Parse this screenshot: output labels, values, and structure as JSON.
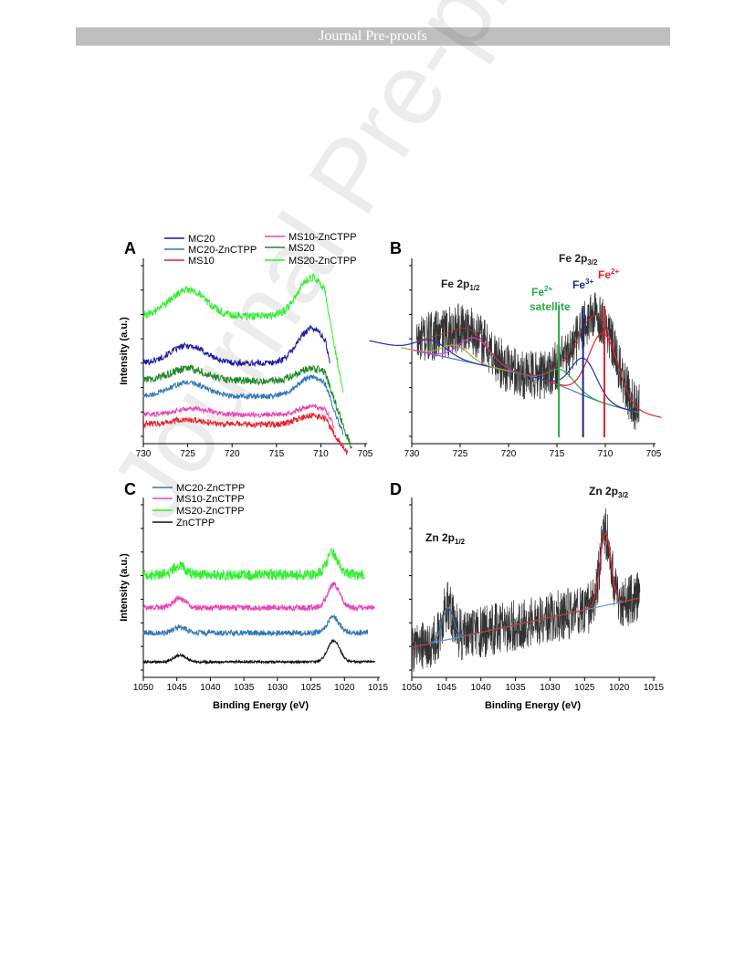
{
  "header": {
    "text": "Journal Pre-proofs",
    "color": "#bfbfbf"
  },
  "watermark": {
    "text": "Journal Pre-proofs"
  },
  "chart_data": [
    {
      "panel": "A",
      "type": "line",
      "xlabel": "",
      "ylabel": "Intensity (a.u.)",
      "xlim": [
        730,
        705
      ],
      "x_ticks": [
        730,
        725,
        720,
        715,
        710,
        705
      ],
      "legend_placement": "top",
      "series": [
        {
          "name": "MC20",
          "color": "#1a1aa0",
          "offset": 4.2,
          "peaks": [
            [
              725,
              1.0,
              2.0
            ],
            [
              711,
              2.0,
              1.6
            ]
          ],
          "x_end": 709,
          "noise": 0.18
        },
        {
          "name": "MC20-ZnCTPP",
          "color": "#2f78b4",
          "offset": 2.3,
          "peaks": [
            [
              725,
              0.8,
              2.0
            ],
            [
              711,
              1.1,
              1.6
            ]
          ],
          "x_end": 707.5,
          "noise": 0.15
        },
        {
          "name": "MS10",
          "color": "#e8202a",
          "offset": 0.7,
          "peaks": [
            [
              725,
              0.25,
              2.0
            ],
            [
              711,
              0.5,
              1.6
            ]
          ],
          "x_end": 707,
          "noise": 0.18
        },
        {
          "name": "MS10-ZnCTPP",
          "color": "#e844b8",
          "offset": 1.25,
          "peaks": [
            [
              724.5,
              0.35,
              2.0
            ],
            [
              711,
              0.45,
              1.6
            ]
          ],
          "x_end": 708.5,
          "noise": 0.14
        },
        {
          "name": "MS20",
          "color": "#1f8a28",
          "offset": 3.2,
          "peaks": [
            [
              725,
              0.7,
              2.0
            ],
            [
              711,
              0.7,
              1.6
            ]
          ],
          "x_end": 706.5,
          "noise": 0.22
        },
        {
          "name": "MS20-ZnCTPP",
          "color": "#2ef02e",
          "offset": 6.9,
          "peaks": [
            [
              725,
              1.5,
              2.0
            ],
            [
              711,
              2.2,
              1.6
            ]
          ],
          "x_end": 707.5,
          "noise": 0.22
        }
      ]
    },
    {
      "panel": "B",
      "type": "line",
      "xlabel": "",
      "ylabel": "",
      "xlim": [
        730,
        705
      ],
      "x_ticks": [
        730,
        725,
        720,
        715,
        710,
        705
      ],
      "annotations": [
        {
          "label": "Fe 2p",
          "sub": "1/2",
          "sup": "",
          "color": "#222222"
        },
        {
          "label": "Fe 2p",
          "sub": "3/2",
          "sup": "",
          "color": "#222222"
        },
        {
          "label": "Fe",
          "sub": "",
          "sup": "2+",
          "color": "#2aa84a",
          "extra": "satellite"
        },
        {
          "label": "Fe",
          "sub": "",
          "sup": "3+",
          "color": "#1a2a80"
        },
        {
          "label": "Fe",
          "sub": "",
          "sup": "2+",
          "color": "#e8202a"
        }
      ],
      "reference_lines": [
        {
          "x": 714.8,
          "color": "#2aa84a"
        },
        {
          "x": 712.3,
          "color": "#1a2a80"
        },
        {
          "x": 710.1,
          "color": "#e8202a"
        }
      ],
      "fit_components": [
        {
          "center": 728,
          "amp": 0.6,
          "width": 1.6,
          "color": "#2030b0"
        },
        {
          "center": 725.5,
          "amp": 0.6,
          "width": 1.4,
          "color": "#b0a040"
        },
        {
          "center": 723.5,
          "amp": 1.1,
          "width": 1.6,
          "color": "#d040d0"
        },
        {
          "center": 714.5,
          "amp": 0.7,
          "width": 1.3,
          "color": "#2aa84a"
        },
        {
          "center": 712.2,
          "amp": 1.6,
          "width": 1.3,
          "color": "#2030b0"
        },
        {
          "center": 710.2,
          "amp": 3.0,
          "width": 1.5,
          "color": "#e8202a"
        }
      ]
    },
    {
      "panel": "C",
      "type": "line",
      "xlabel": "Binding Energy (eV)",
      "ylabel": "Intensity (a.u.)",
      "xlim": [
        1050,
        1015
      ],
      "x_ticks": [
        1050,
        1045,
        1040,
        1035,
        1030,
        1025,
        1020,
        1015
      ],
      "legend_placement": "top-left",
      "series": [
        {
          "name": "MC20-ZnCTPP",
          "color": "#2f78b4",
          "offset": 2.0,
          "peaks": [
            [
              1044.5,
              0.3,
              0.9
            ],
            [
              1021.7,
              0.8,
              0.9
            ]
          ],
          "x_start": 1050,
          "x_end": 1016.5,
          "noise": 0.14
        },
        {
          "name": "MS10-ZnCTPP",
          "color": "#e844b8",
          "offset": 3.3,
          "peaks": [
            [
              1044.6,
              0.5,
              0.9
            ],
            [
              1021.6,
              1.2,
              0.9
            ]
          ],
          "x_start": 1050,
          "x_end": 1015.5,
          "noise": 0.15
        },
        {
          "name": "MS20-ZnCTPP",
          "color": "#2ef02e",
          "offset": 5.0,
          "peaks": [
            [
              1044.6,
              0.5,
              0.9
            ],
            [
              1021.8,
              1.1,
              0.9
            ]
          ],
          "x_start": 1050,
          "x_end": 1017,
          "noise": 0.28
        },
        {
          "name": "ZnCTPP",
          "color": "#111111",
          "offset": 0.5,
          "peaks": [
            [
              1044.5,
              0.35,
              0.9
            ],
            [
              1021.6,
              1.1,
              0.9
            ]
          ],
          "x_start": 1050,
          "x_end": 1015.5,
          "noise": 0.06
        }
      ]
    },
    {
      "panel": "D",
      "type": "line",
      "xlabel": "Binding Energy (eV)",
      "ylabel": "",
      "xlim": [
        1050,
        1015
      ],
      "x_ticks": [
        1050,
        1045,
        1040,
        1035,
        1030,
        1025,
        1020,
        1015
      ],
      "annotations": [
        {
          "label": "Zn 2p",
          "sub": "1/2",
          "sup": "",
          "color": "#111111"
        },
        {
          "label": "Zn 2p",
          "sub": "3/2",
          "sup": "",
          "color": "#111111"
        }
      ],
      "fit_components": [
        {
          "center": 1044.8,
          "amp": 1.6,
          "width": 0.8,
          "color": "#2f78b4"
        },
        {
          "center": 1022,
          "amp": 3.6,
          "width": 0.8,
          "color": "#e8202a"
        }
      ]
    }
  ]
}
